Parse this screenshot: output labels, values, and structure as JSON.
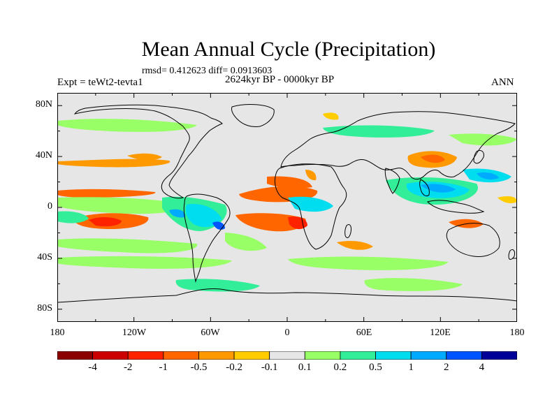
{
  "title": "Mean Annual Cycle (Precipitation)",
  "stats": "rmsd= 0.412623   diff= 0.0913603",
  "experiment": "Expt = teWt2-tevta1",
  "period": "2624kyr BP - 0000kyr BP",
  "season": "ANN",
  "lat_labels": [
    "80N",
    "40N",
    "0",
    "40S",
    "80S"
  ],
  "lon_labels": [
    "180",
    "120W",
    "60W",
    "0",
    "60E",
    "120E",
    "180"
  ],
  "colorbar": {
    "labels": [
      "-4",
      "-2",
      "-1",
      "-0.5",
      "-0.2",
      "-0.1",
      "0.1",
      "0.2",
      "0.5",
      "1",
      "2",
      "4"
    ],
    "colors": [
      "#8b0000",
      "#cc0000",
      "#ff2200",
      "#ff6600",
      "#ff9900",
      "#ffcc00",
      "#e6e6e6",
      "#99ff66",
      "#33ee99",
      "#00ddee",
      "#00aaff",
      "#0055ff",
      "#000099"
    ]
  },
  "palette": {
    "land_outline": "#000000",
    "background": "#e6e6e6",
    "wet_strong": "#0044ff",
    "wet": "#00aaff",
    "wet_light": "#00ddee",
    "wet_faint": "#99ff66",
    "dry": "#ff6600",
    "dry_strong": "#ff2200",
    "dry_faint": "#ffcc00"
  }
}
